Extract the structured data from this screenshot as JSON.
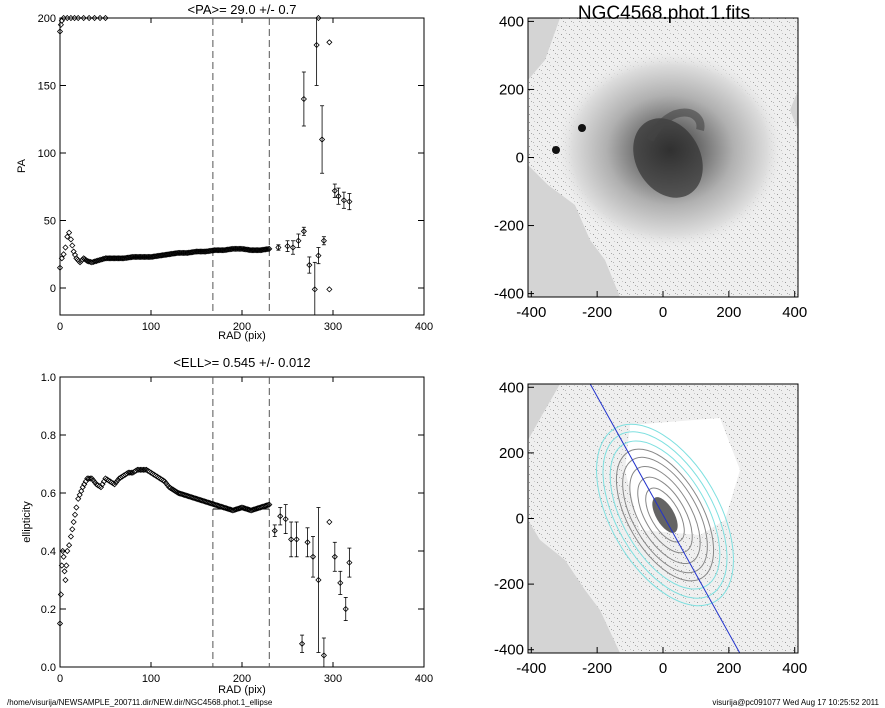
{
  "pa_plot": {
    "title": "<PA>=  29.0 +/-   0.7",
    "xlabel": "RAD (pix)",
    "ylabel": "PA",
    "xticks": [
      "0",
      "100",
      "200",
      "300",
      "400"
    ],
    "yticks": [
      "0",
      "50",
      "100",
      "150",
      "200"
    ]
  },
  "ell_plot": {
    "title": "<ELL>= 0.545 +/-  0.012",
    "xlabel": "RAD (pix)",
    "ylabel": "ellipticity",
    "xticks": [
      "0",
      "100",
      "200",
      "300",
      "400"
    ],
    "yticks": [
      "0.0",
      "0.2",
      "0.4",
      "0.6",
      "0.8",
      "1.0"
    ]
  },
  "image_top": {
    "title": "NGC4568.phot.1.fits",
    "xticks": [
      "-400",
      "-200",
      "0",
      "200",
      "400"
    ],
    "yticks": [
      "-400",
      "-200",
      "0",
      "200",
      "400"
    ]
  },
  "image_bottom": {
    "xticks": [
      "-400",
      "-200",
      "0",
      "200",
      "400"
    ],
    "yticks": [
      "-400",
      "-200",
      "0",
      "200",
      "400"
    ]
  },
  "footer": {
    "left": "/home/visurija/NEWSAMPLE_200711.dir/NEW.dir/NGC4568.phot.1_ellipse",
    "right": "visurija@pc091077  Wed Aug 17 10:25:52 2011"
  },
  "chart_data": [
    {
      "type": "scatter",
      "title": "<PA>=  29.0 +/-   0.7",
      "xlabel": "RAD (pix)",
      "ylabel": "PA",
      "xlim": [
        0,
        400
      ],
      "ylim": [
        -20,
        200
      ],
      "vlines": [
        168,
        230
      ],
      "hline": {
        "x": [
          168,
          230
        ],
        "y": 29.0
      },
      "x": [
        0,
        2,
        4,
        6,
        8,
        10,
        12,
        15,
        18,
        22,
        26,
        30,
        35,
        40,
        45,
        50,
        60,
        70,
        80,
        90,
        100,
        110,
        120,
        130,
        140,
        150,
        160,
        170,
        180,
        190,
        200,
        210,
        220,
        230,
        240,
        250,
        256,
        262,
        268,
        274,
        280,
        284,
        290,
        296,
        302,
        306,
        312,
        318
      ],
      "y": [
        15,
        22,
        25,
        30,
        38,
        41,
        36,
        27,
        22,
        19,
        22,
        20,
        19,
        20,
        21,
        22,
        22,
        22,
        23,
        23,
        23,
        24,
        25,
        26,
        26,
        27,
        27,
        28,
        28,
        29,
        29,
        28,
        28,
        29,
        30,
        31,
        30,
        35,
        42,
        17,
        -1,
        24,
        35,
        -1,
        72,
        68,
        65,
        64
      ],
      "yerr": [
        0,
        0,
        0,
        0,
        0,
        0,
        0,
        0,
        0,
        0,
        0,
        0,
        0,
        0,
        0,
        0,
        0,
        0,
        0,
        0,
        0,
        0,
        0,
        0,
        0,
        0,
        0,
        0,
        0,
        0,
        0,
        0,
        0,
        0,
        2,
        4,
        5,
        5,
        3,
        6,
        20,
        6,
        3,
        0,
        5,
        6,
        6,
        6
      ],
      "high_points": {
        "x": [
          268,
          282,
          284,
          288,
          296
        ],
        "y": [
          140,
          180,
          200,
          110,
          182
        ],
        "yerr": [
          20,
          30,
          0,
          25,
          0
        ]
      }
    },
    {
      "type": "scatter",
      "title": "<ELL>= 0.545 +/-  0.012",
      "xlabel": "RAD (pix)",
      "ylabel": "ellipticity",
      "xlim": [
        0,
        400
      ],
      "ylim": [
        0.0,
        1.0
      ],
      "vlines": [
        168,
        230
      ],
      "hline": {
        "x": [
          168,
          230
        ],
        "y": 0.545
      },
      "x": [
        0,
        1,
        2,
        3,
        4,
        5,
        6,
        7,
        8,
        10,
        12,
        15,
        18,
        20,
        25,
        30,
        35,
        40,
        45,
        50,
        55,
        60,
        65,
        70,
        75,
        80,
        85,
        90,
        95,
        100,
        105,
        110,
        115,
        120,
        130,
        140,
        150,
        160,
        170,
        180,
        190,
        200,
        210,
        220,
        230,
        236,
        242,
        248,
        254,
        260,
        266,
        272,
        278,
        284,
        290,
        296,
        302,
        308,
        314,
        318
      ],
      "y": [
        0.15,
        0.25,
        0.35,
        0.4,
        0.38,
        0.33,
        0.3,
        0.35,
        0.4,
        0.42,
        0.45,
        0.5,
        0.55,
        0.58,
        0.62,
        0.65,
        0.65,
        0.63,
        0.62,
        0.65,
        0.64,
        0.63,
        0.65,
        0.66,
        0.67,
        0.67,
        0.68,
        0.68,
        0.68,
        0.67,
        0.66,
        0.65,
        0.64,
        0.62,
        0.6,
        0.59,
        0.58,
        0.57,
        0.56,
        0.55,
        0.54,
        0.55,
        0.54,
        0.55,
        0.56,
        0.47,
        0.52,
        0.51,
        0.44,
        0.44,
        0.08,
        0.43,
        0.38,
        0.3,
        0.04,
        0.5,
        0.38,
        0.29,
        0.2,
        0.36
      ],
      "yerr": [
        0,
        0,
        0,
        0,
        0,
        0,
        0,
        0,
        0,
        0,
        0,
        0,
        0,
        0,
        0,
        0,
        0,
        0,
        0,
        0,
        0,
        0,
        0,
        0,
        0,
        0,
        0,
        0,
        0,
        0,
        0,
        0,
        0,
        0,
        0,
        0,
        0,
        0,
        0,
        0,
        0,
        0,
        0,
        0,
        0,
        0.02,
        0.03,
        0.05,
        0.06,
        0.06,
        0.03,
        0.05,
        0.07,
        0.25,
        0.06,
        0,
        0.05,
        0.04,
        0.04,
        0.05
      ]
    }
  ]
}
